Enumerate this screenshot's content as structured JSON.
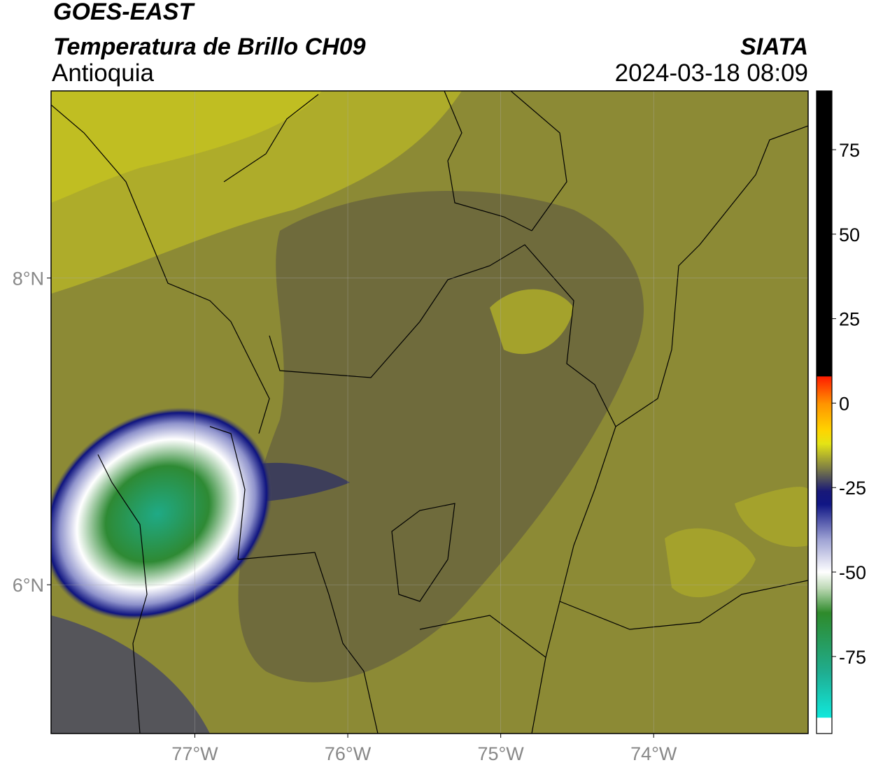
{
  "header": {
    "satellite": "GOES-EAST",
    "product": "Temperatura de Brillo CH09",
    "region": "Antioquia",
    "agency": "SIATA",
    "timestamp": "2024-03-18 08:09"
  },
  "map": {
    "xlim": [
      -77.94,
      -72.99
    ],
    "ylim": [
      5.03,
      9.22
    ],
    "xticks": [
      {
        "value": -77,
        "label": "77°W"
      },
      {
        "value": -76,
        "label": "76°W"
      },
      {
        "value": -75,
        "label": "75°W"
      },
      {
        "value": -74,
        "label": "74°W"
      }
    ],
    "yticks": [
      {
        "value": 6,
        "label": "6°N"
      },
      {
        "value": 8,
        "label": "8°N"
      }
    ],
    "grid": true
  },
  "colorbar": {
    "lim": [
      -97.8,
      92.4
    ],
    "ticks": [
      -75,
      -50,
      -25,
      0,
      25,
      50,
      75
    ],
    "colorscale": [
      [
        -97.8,
        "#ffffff"
      ],
      [
        -93,
        "#ffffff"
      ],
      [
        -93,
        "#10e8dc"
      ],
      [
        -80,
        "#1fae92"
      ],
      [
        -62,
        "#2e8a2a"
      ],
      [
        -55,
        "#b8d6b0"
      ],
      [
        -50,
        "#ffffff"
      ],
      [
        -40,
        "#9a9ed2"
      ],
      [
        -30,
        "#101685"
      ],
      [
        -26,
        "#181878"
      ],
      [
        -20,
        "#73734a"
      ],
      [
        -12,
        "#e4e415"
      ],
      [
        -8,
        "#ffd400"
      ],
      [
        0,
        "#ff9200"
      ],
      [
        8,
        "#ff1a00"
      ],
      [
        8,
        "#000000"
      ],
      [
        92.4,
        "#000000"
      ]
    ]
  }
}
